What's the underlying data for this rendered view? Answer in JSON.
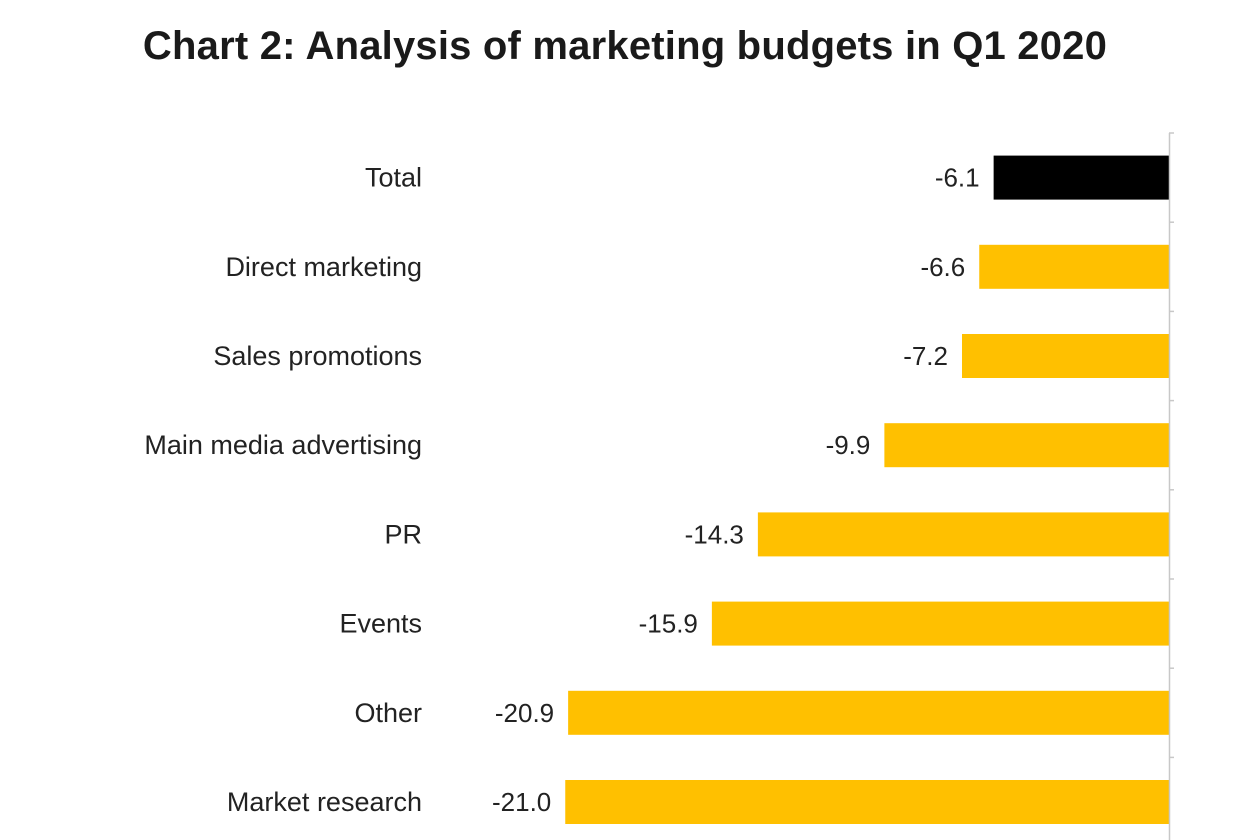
{
  "chart_data": {
    "type": "bar",
    "orientation": "horizontal",
    "title": "Chart 2: Analysis of marketing budgets in Q1 2020",
    "xlabel": "",
    "ylabel": "",
    "categories": [
      "Total",
      "Direct marketing",
      "Sales promotions",
      "Main media advertising",
      "PR",
      "Events",
      "Other",
      "Market research"
    ],
    "values": [
      -6.1,
      -6.6,
      -7.2,
      -9.9,
      -14.3,
      -15.9,
      -20.9,
      -21.0
    ],
    "value_labels": [
      "-6.1",
      "-6.6",
      "-7.2",
      "-9.9",
      "-14.3",
      "-15.9",
      "-20.9",
      "-21.0"
    ],
    "bar_colors": [
      "#000000",
      "#FFC000",
      "#FFC000",
      "#FFC000",
      "#FFC000",
      "#FFC000",
      "#FFC000",
      "#FFC000"
    ],
    "xlim": [
      -21.0,
      0
    ],
    "grid": false,
    "legend": "none"
  }
}
